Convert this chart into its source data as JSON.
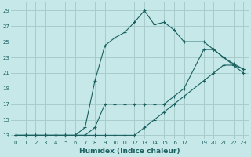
{
  "xlabel": "Humidex (Indice chaleur)",
  "bg_color": "#c6e8e8",
  "grid_color": "#a8cccc",
  "line_color": "#1a6060",
  "xlim": [
    -0.5,
    23.5
  ],
  "ylim": [
    12.5,
    30
  ],
  "xticks": [
    0,
    1,
    2,
    3,
    4,
    5,
    6,
    7,
    8,
    9,
    10,
    11,
    12,
    13,
    14,
    15,
    16,
    17,
    19,
    20,
    21,
    22,
    23
  ],
  "yticks": [
    13,
    15,
    17,
    19,
    21,
    23,
    25,
    27,
    29
  ],
  "line1_x": [
    0,
    1,
    2,
    3,
    4,
    5,
    6,
    7,
    8,
    9,
    10,
    11,
    12,
    13,
    14,
    15,
    16,
    17,
    19,
    20,
    21,
    22,
    23
  ],
  "line1_y": [
    13,
    13,
    13,
    13,
    13,
    13,
    13,
    13,
    13,
    13,
    13,
    13,
    13,
    14,
    15,
    16,
    17,
    18,
    20,
    21,
    22,
    22,
    21.5
  ],
  "line2_x": [
    0,
    1,
    2,
    3,
    4,
    5,
    6,
    7,
    8,
    9,
    10,
    11,
    12,
    13,
    14,
    15,
    16,
    17,
    19,
    20,
    21,
    22,
    23
  ],
  "line2_y": [
    13,
    13,
    13,
    13,
    13,
    13,
    13,
    13,
    14,
    17,
    17,
    17,
    17,
    17,
    17,
    17,
    18,
    19,
    24,
    24,
    23,
    22,
    21
  ],
  "line3_x": [
    0,
    1,
    2,
    3,
    4,
    5,
    6,
    7,
    8,
    9,
    10,
    11,
    12,
    13,
    14,
    15,
    16,
    17,
    19,
    20,
    21,
    22,
    23
  ],
  "line3_y": [
    13,
    13,
    13,
    13,
    13,
    13,
    13,
    14,
    20,
    24.5,
    25.5,
    26.2,
    27.5,
    29,
    27.2,
    27.5,
    26.5,
    25,
    25,
    24,
    23,
    22.2,
    21.5
  ]
}
